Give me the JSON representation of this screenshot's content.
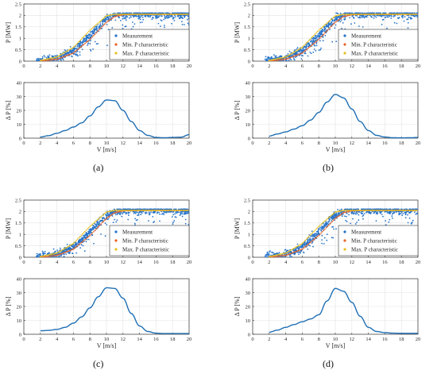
{
  "panels": [
    {
      "caption": "(a)"
    },
    {
      "caption": "(b)"
    },
    {
      "caption": "(c)"
    },
    {
      "caption": "(d)"
    }
  ],
  "legend": {
    "entries": [
      "Measurement",
      "Min. P characteristic",
      "Max. P characteristic"
    ],
    "colors": [
      "#2673c9",
      "#e8642a",
      "#e8c020"
    ]
  },
  "chart_data": [
    {
      "panel": "a",
      "charts": [
        {
          "type": "scatter",
          "ylabel": "P [MW]",
          "xlabel": "",
          "xlim": [
            0,
            20
          ],
          "ylim": [
            0,
            2.5
          ],
          "xticks": [
            0,
            2,
            4,
            6,
            8,
            10,
            12,
            14,
            16,
            18,
            20
          ],
          "yticks": [
            0,
            0.5,
            1,
            1.5,
            2,
            2.5
          ],
          "grid": true,
          "legend": "inside right",
          "series": [
            {
              "name": "Measurement",
              "description": "dense point cloud around sigmoidal power curve",
              "x": [
                2,
                4,
                6,
                8,
                10,
                11,
                12,
                14,
                16,
                18,
                20
              ],
              "y": [
                0.02,
                0.12,
                0.45,
                1.1,
                1.85,
                2.02,
                2.05,
                2.05,
                2.05,
                2.05,
                2.05
              ]
            },
            {
              "name": "Min. P characteristic",
              "x": [
                2,
                4,
                6,
                8,
                10,
                11,
                12,
                14,
                16,
                18,
                20
              ],
              "y": [
                0.0,
                0.08,
                0.35,
                0.95,
                1.7,
                1.95,
                2.03,
                2.05,
                2.05,
                2.05,
                2.05
              ]
            },
            {
              "name": "Max. P characteristic",
              "x": [
                2,
                4,
                6,
                8,
                10,
                11,
                12,
                14,
                16,
                18,
                20
              ],
              "y": [
                0.03,
                0.18,
                0.6,
                1.35,
                1.98,
                2.05,
                2.05,
                2.05,
                2.05,
                2.05,
                2.05
              ]
            }
          ]
        },
        {
          "type": "line",
          "ylabel": "Δ P [%]",
          "xlabel": "V [m/s]",
          "xlim": [
            0,
            20
          ],
          "ylim": [
            0,
            40
          ],
          "xticks": [
            0,
            2,
            4,
            6,
            8,
            10,
            12,
            14,
            16,
            18,
            20
          ],
          "yticks": [
            0,
            10,
            20,
            30,
            40
          ],
          "grid": true,
          "x": [
            2,
            3,
            4,
            5,
            6,
            7,
            8,
            9,
            10,
            11,
            12,
            13,
            14,
            15,
            16,
            17,
            18,
            19,
            20
          ],
          "y": [
            0.8,
            1.8,
            3.5,
            5.5,
            8,
            11,
            16,
            22.5,
            27.5,
            27,
            20,
            12,
            5.5,
            2,
            0.5,
            0.3,
            0.5,
            0.7,
            2.5
          ]
        }
      ]
    },
    {
      "panel": "b",
      "charts": [
        {
          "type": "scatter",
          "ylabel": "P [MW]",
          "xlabel": "",
          "xlim": [
            0,
            20
          ],
          "ylim": [
            0,
            2.5
          ],
          "xticks": [
            0,
            2,
            4,
            6,
            8,
            10,
            12,
            14,
            16,
            18,
            20
          ],
          "yticks": [
            0,
            0.5,
            1,
            1.5,
            2,
            2.5
          ],
          "grid": true,
          "legend": "inside right",
          "series": [
            {
              "name": "Measurement",
              "x": [
                2,
                4,
                6,
                8,
                10,
                11,
                12,
                14,
                16,
                18,
                20
              ],
              "y": [
                0.02,
                0.12,
                0.45,
                1.1,
                1.85,
                2.02,
                2.05,
                2.05,
                2.05,
                2.05,
                2.05
              ]
            },
            {
              "name": "Min. P characteristic",
              "x": [
                2,
                4,
                6,
                8,
                10,
                11,
                12,
                14,
                16,
                18,
                20
              ],
              "y": [
                0.0,
                0.08,
                0.35,
                0.95,
                1.7,
                1.95,
                2.03,
                2.05,
                2.05,
                2.05,
                2.05
              ]
            },
            {
              "name": "Max. P characteristic",
              "x": [
                2,
                4,
                6,
                8,
                10,
                11,
                12,
                14,
                16,
                18,
                20
              ],
              "y": [
                0.03,
                0.18,
                0.6,
                1.35,
                1.98,
                2.05,
                2.05,
                2.05,
                2.05,
                2.05,
                2.05
              ]
            }
          ]
        },
        {
          "type": "line",
          "ylabel": "Δ P [%]",
          "xlabel": "V [m/s]",
          "xlim": [
            0,
            20
          ],
          "ylim": [
            0,
            40
          ],
          "xticks": [
            0,
            2,
            4,
            6,
            8,
            10,
            12,
            14,
            16,
            18,
            20
          ],
          "yticks": [
            0,
            10,
            20,
            30,
            40
          ],
          "grid": true,
          "x": [
            2,
            3,
            4,
            5,
            6,
            7,
            8,
            9,
            10,
            11,
            12,
            13,
            14,
            15,
            16,
            17,
            18,
            19,
            20
          ],
          "y": [
            1.5,
            3,
            4.5,
            6.5,
            9,
            13,
            18.5,
            26,
            31.5,
            29,
            21,
            12,
            5.5,
            2,
            0.8,
            0.3,
            0.2,
            0.3,
            0.5
          ]
        }
      ]
    },
    {
      "panel": "c",
      "charts": [
        {
          "type": "scatter",
          "ylabel": "P [MW]",
          "xlabel": "",
          "xlim": [
            0,
            20
          ],
          "ylim": [
            0,
            2.5
          ],
          "xticks": [
            0,
            2,
            4,
            6,
            8,
            10,
            12,
            14,
            16,
            18,
            20
          ],
          "yticks": [
            0,
            0.5,
            1,
            1.5,
            2,
            2.5
          ],
          "grid": true,
          "legend": "inside right",
          "series": [
            {
              "name": "Measurement",
              "x": [
                2,
                4,
                6,
                8,
                10,
                11,
                12,
                14,
                16,
                18,
                20
              ],
              "y": [
                0.02,
                0.12,
                0.45,
                1.1,
                1.85,
                2.02,
                2.05,
                2.05,
                2.05,
                2.05,
                2.05
              ]
            },
            {
              "name": "Min. P characteristic",
              "x": [
                2,
                4,
                6,
                8,
                10,
                11,
                12,
                14,
                16,
                18,
                20
              ],
              "y": [
                0.0,
                0.08,
                0.35,
                0.95,
                1.7,
                1.95,
                2.03,
                2.05,
                2.05,
                2.05,
                2.05
              ]
            },
            {
              "name": "Max. P characteristic",
              "x": [
                2,
                4,
                6,
                8,
                10,
                11,
                12,
                14,
                16,
                18,
                20
              ],
              "y": [
                0.03,
                0.18,
                0.6,
                1.35,
                1.98,
                2.05,
                2.05,
                2.05,
                2.05,
                2.05,
                2.05
              ]
            }
          ]
        },
        {
          "type": "line",
          "ylabel": "Δ P [%]",
          "xlabel": "V [m/s]",
          "xlim": [
            0,
            20
          ],
          "ylim": [
            0,
            40
          ],
          "xticks": [
            0,
            2,
            4,
            6,
            8,
            10,
            12,
            14,
            16,
            18,
            20
          ],
          "yticks": [
            0,
            10,
            20,
            30,
            40
          ],
          "grid": true,
          "x": [
            2,
            3,
            4,
            5,
            6,
            7,
            8,
            9,
            10,
            11,
            12,
            13,
            14,
            15,
            16,
            17,
            18,
            19,
            20
          ],
          "y": [
            2.5,
            2.8,
            3.5,
            5,
            8,
            12.5,
            19,
            27,
            33.5,
            33,
            26,
            15,
            6,
            2,
            0.8,
            0.5,
            0.5,
            0.5,
            0.5
          ]
        }
      ]
    },
    {
      "panel": "d",
      "charts": [
        {
          "type": "scatter",
          "ylabel": "P [MW]",
          "xlabel": "",
          "xlim": [
            0,
            20
          ],
          "ylim": [
            0,
            2.5
          ],
          "xticks": [
            0,
            2,
            4,
            6,
            8,
            10,
            12,
            14,
            16,
            18,
            20
          ],
          "yticks": [
            0,
            0.5,
            1,
            1.5,
            2,
            2.5
          ],
          "grid": true,
          "legend": "inside right",
          "series": [
            {
              "name": "Measurement",
              "x": [
                2,
                4,
                6,
                8,
                10,
                11,
                12,
                14,
                16,
                18,
                20
              ],
              "y": [
                0.02,
                0.12,
                0.45,
                1.1,
                1.85,
                2.02,
                2.05,
                2.05,
                2.05,
                2.05,
                2.05
              ]
            },
            {
              "name": "Min. P characteristic",
              "x": [
                2,
                4,
                6,
                8,
                10,
                11,
                12,
                14,
                16,
                18,
                20
              ],
              "y": [
                0.0,
                0.08,
                0.35,
                0.95,
                1.7,
                1.95,
                2.03,
                2.05,
                2.05,
                2.05,
                2.05
              ]
            },
            {
              "name": "Max. P characteristic",
              "x": [
                2,
                4,
                6,
                8,
                10,
                11,
                12,
                14,
                16,
                18,
                20
              ],
              "y": [
                0.03,
                0.18,
                0.6,
                1.35,
                1.98,
                2.05,
                2.05,
                2.05,
                2.05,
                2.05,
                2.05
              ]
            }
          ]
        },
        {
          "type": "line",
          "ylabel": "Δ P [%]",
          "xlabel": "V [m/s]",
          "xlim": [
            0,
            20
          ],
          "ylim": [
            0,
            40
          ],
          "xticks": [
            0,
            2,
            4,
            6,
            8,
            10,
            12,
            14,
            16,
            18,
            20
          ],
          "yticks": [
            0,
            10,
            20,
            30,
            40
          ],
          "grid": true,
          "x": [
            2,
            3,
            4,
            5,
            6,
            7,
            8,
            9,
            10,
            11,
            12,
            13,
            14,
            15,
            16,
            17,
            18,
            19,
            20
          ],
          "y": [
            1.5,
            3,
            5,
            7,
            9,
            11,
            14,
            24,
            33,
            31,
            23,
            13,
            5,
            2,
            1.2,
            0.8,
            0.7,
            0.7,
            0.7
          ]
        }
      ]
    }
  ]
}
